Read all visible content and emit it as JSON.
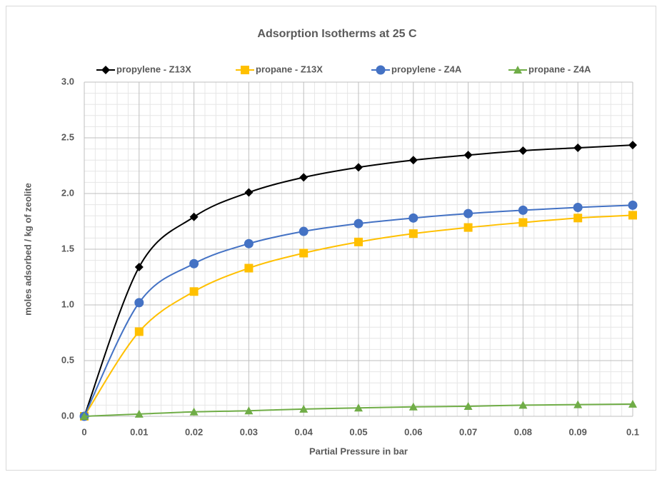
{
  "chart_data": {
    "type": "line",
    "title": "Adsorption Isotherms at 25 C",
    "x_label": "Partial Pressure in bar",
    "y_label": "moles adsorbed / kg of zeolite",
    "x": [
      0,
      0.01,
      0.02,
      0.03,
      0.04,
      0.05,
      0.06,
      0.07,
      0.08,
      0.09,
      0.1
    ],
    "series": [
      {
        "name": "propylene - Z13X",
        "color": "#000000",
        "marker": "diamond",
        "values": [
          0,
          1.34,
          1.79,
          2.01,
          2.145,
          2.235,
          2.3,
          2.345,
          2.385,
          2.41,
          2.435
        ]
      },
      {
        "name": "propane - Z13X",
        "color": "#ffc000",
        "marker": "square",
        "values": [
          0,
          0.76,
          1.12,
          1.33,
          1.465,
          1.565,
          1.64,
          1.695,
          1.74,
          1.78,
          1.805
        ]
      },
      {
        "name": "propylene - Z4A",
        "color": "#4472c4",
        "marker": "circle",
        "values": [
          0,
          1.02,
          1.37,
          1.55,
          1.66,
          1.73,
          1.78,
          1.82,
          1.85,
          1.875,
          1.895
        ]
      },
      {
        "name": "propane - Z4A",
        "color": "#70ad47",
        "marker": "triangle",
        "values": [
          0,
          0.02,
          0.04,
          0.05,
          0.065,
          0.075,
          0.085,
          0.09,
          0.1,
          0.105,
          0.11
        ]
      }
    ],
    "xlim": [
      0,
      0.1
    ],
    "xticks": [
      0,
      0.01,
      0.02,
      0.03,
      0.04,
      0.05,
      0.06,
      0.07,
      0.08,
      0.09,
      0.1
    ],
    "ylim": [
      0,
      3
    ],
    "yticks": [
      {
        "value": 0,
        "label": "0.0"
      },
      0.5,
      {
        "value": 1,
        "label": "1.0"
      },
      1.5,
      {
        "value": 2,
        "label": "2.0"
      },
      2.5,
      {
        "value": 3,
        "label": "3.0"
      }
    ],
    "grid": true,
    "minor_grid": true,
    "smooth": true,
    "legend": "top"
  }
}
